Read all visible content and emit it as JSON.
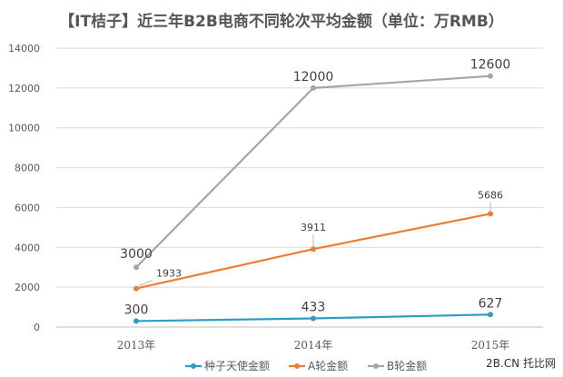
{
  "chart_data": {
    "type": "line",
    "title": "【IT桔子】近三年B2B电商不同轮次平均金额（单位：万RMB）",
    "categories": [
      "2013年",
      "2014年",
      "2015年"
    ],
    "ylim": [
      0,
      14000
    ],
    "yticks": [
      0,
      2000,
      4000,
      6000,
      8000,
      10000,
      12000,
      14000
    ],
    "grid": true,
    "legend_position": "bottom",
    "series": [
      {
        "name": "种子天使金额",
        "color": "#2e9dc4",
        "values": [
          300,
          433,
          627
        ],
        "labels": [
          "300",
          "433",
          "627"
        ],
        "label_style": "big"
      },
      {
        "name": "A轮金额",
        "color": "#ed7d31",
        "values": [
          1933,
          3911,
          5686
        ],
        "labels": [
          "1933",
          "3911",
          "5686"
        ],
        "label_style": "small"
      },
      {
        "name": "B轮金额",
        "color": "#a5a5a5",
        "values": [
          3000,
          12000,
          12600
        ],
        "labels": [
          "3000",
          "12000",
          "12600"
        ],
        "label_style": "big"
      }
    ]
  },
  "watermark": "2B.CN 托比网"
}
